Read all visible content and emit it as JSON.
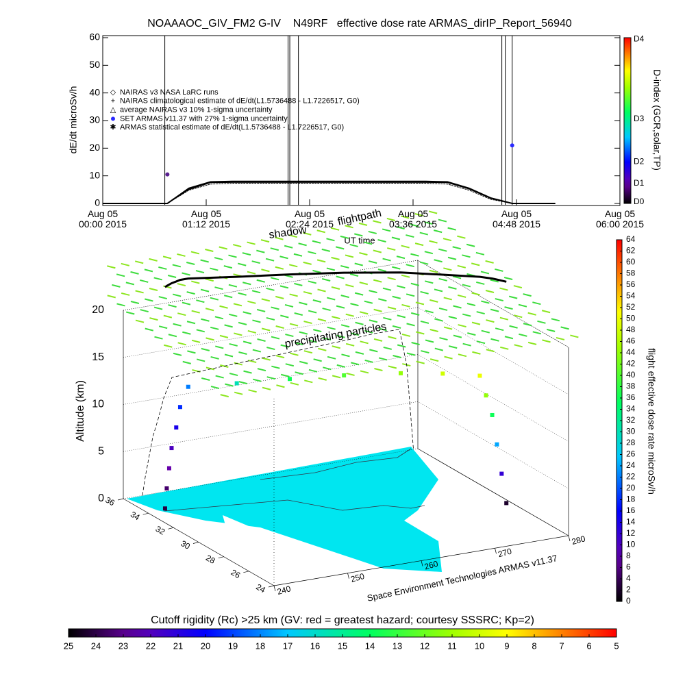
{
  "chart_data": [
    {
      "type": "line",
      "title": "NOAAAOC_GIV_FM2 G-IV    N49RF   effective dose rate ARMAS_dirIP_Report_56940",
      "ylabel": "dE/dt microSv/h",
      "xlabel": "UT time",
      "x": [
        0,
        0.25,
        0.5,
        0.75,
        1,
        1.25,
        1.5,
        1.75,
        2,
        2.25,
        2.5,
        2.75,
        3,
        3.25,
        3.5,
        3.75,
        4,
        4.25,
        4.5,
        4.75,
        5,
        5.25
      ],
      "xlim": [
        0,
        6
      ],
      "xticks": [
        {
          "value": 0,
          "label": "Aug 05\n00:00 2015"
        },
        {
          "value": 1.2,
          "label": "Aug 05\n01:12 2015"
        },
        {
          "value": 2.4,
          "label": "Aug 05\n02:24 2015"
        },
        {
          "value": 3.6,
          "label": "Aug 05\n03:36 2015"
        },
        {
          "value": 4.8,
          "label": "Aug 05\n04:48 2015"
        },
        {
          "value": 6,
          "label": "Aug 05\n06:00 2015"
        }
      ],
      "ylim": [
        0,
        60
      ],
      "yticks": [
        0,
        10,
        20,
        30,
        40,
        50,
        60
      ],
      "series": [
        {
          "name": "NAIRAS v3 NASA LaRC runs",
          "color": "#000000",
          "values": [
            0,
            0,
            0,
            0,
            5,
            7.5,
            7.6,
            7.6,
            7.6,
            7.6,
            7.6,
            7.6,
            7.6,
            7.6,
            7.6,
            7.6,
            7.5,
            5.2,
            1.8,
            0,
            0,
            0
          ]
        },
        {
          "name": "NAIRAS climatological estimate of dE/dt(L1.5736488 - L1.7226517, G0)",
          "color": "#000000",
          "values": [
            0,
            0,
            0,
            0,
            5.5,
            7.8,
            8,
            8,
            8,
            8,
            8,
            8,
            8,
            8,
            8,
            8,
            7.8,
            5.5,
            2,
            0,
            0,
            0
          ]
        },
        {
          "name": "average NAIRAS v3 10% 1-sigma uncertainty",
          "color": "#000000",
          "values": [
            0,
            0,
            0,
            0,
            5.2,
            7.6,
            7.7,
            7.7,
            7.7,
            7.7,
            7.7,
            7.7,
            7.7,
            7.7,
            7.7,
            7.7,
            7.6,
            5.3,
            1.9,
            0,
            0,
            0
          ]
        },
        {
          "name": "SET ARMAS v11.37 with 27% 1-sigma uncertainty",
          "color": "#2a2aff",
          "values": [
            null,
            null,
            null,
            10.5,
            null,
            null,
            null,
            null,
            null,
            null,
            null,
            null,
            null,
            null,
            null,
            null,
            null,
            null,
            null,
            21,
            null,
            null
          ]
        },
        {
          "name": "ARMAS statistical estimate of dE/dt(L1.5736488 - L1.7226517, G0)",
          "color": "#000000",
          "values": [
            0,
            0,
            0,
            0,
            4.8,
            7,
            7.3,
            7.3,
            7.3,
            7.3,
            7.3,
            7.3,
            7.3,
            7.3,
            7.3,
            7.3,
            7,
            4.8,
            1.5,
            0,
            0,
            0
          ]
        }
      ],
      "colorbar": {
        "label": "D-index (GCR,solar,TP)",
        "ticks": [
          "D0",
          "D1",
          "D2",
          "D3",
          "D4"
        ]
      }
    },
    {
      "type": "scatter3d",
      "zlabel": "Altitude (km)",
      "zlim": [
        0,
        20
      ],
      "zticks": [
        0,
        5,
        10,
        15,
        20
      ],
      "latlim": [
        24,
        36
      ],
      "latticks": [
        36,
        34,
        32,
        30,
        28,
        26,
        24
      ],
      "lonlim": [
        240,
        280
      ],
      "lonticks": [
        240,
        250,
        260,
        270,
        280
      ],
      "annotations": [
        "shadow",
        "flightpath",
        "precipitating particles",
        "Space Environment Technologies ARMAS v11.37"
      ],
      "flight": {
        "lat": [
          34.2,
          34.3,
          34.4,
          34.5,
          34.6,
          34.7,
          34.7,
          34.0,
          33.3,
          32.5,
          31.5,
          30.5,
          29.6,
          29.4,
          29.2,
          29.0,
          28.8,
          28.6
        ],
        "lon": [
          242.6,
          243,
          243.5,
          244,
          244.8,
          245.5,
          246.6,
          252,
          258,
          264,
          270,
          274,
          277.5,
          278,
          278.5,
          278.8,
          279.1,
          279.4
        ],
        "alt": [
          0,
          2,
          4,
          6,
          8,
          10,
          12,
          12.2,
          12.4,
          12.6,
          12.8,
          13,
          13,
          11,
          9,
          6,
          3,
          0
        ],
        "dose": [
          3,
          5,
          8,
          10,
          14,
          18,
          22,
          30,
          36,
          40,
          44,
          48,
          50,
          44,
          36,
          24,
          12,
          2
        ]
      },
      "colorbar": {
        "label": "flight effective dose rate microSv/h",
        "lim": [
          0,
          64
        ],
        "ticks": [
          0,
          2,
          4,
          6,
          8,
          10,
          12,
          14,
          16,
          18,
          20,
          22,
          24,
          26,
          28,
          30,
          32,
          34,
          36,
          38,
          40,
          42,
          44,
          46,
          48,
          50,
          52,
          54,
          56,
          58,
          60,
          62,
          64
        ]
      }
    },
    {
      "type": "colorbar",
      "title": "Cutoff rigidity (Rc) >25 km (GV: red = greatest hazard; courtesy SSSRC; Kp=2)",
      "lim": [
        25,
        5
      ],
      "ticks": [
        25,
        24,
        23,
        22,
        21,
        20,
        19,
        18,
        17,
        16,
        15,
        14,
        13,
        12,
        11,
        10,
        9,
        8,
        7,
        6,
        5
      ]
    }
  ]
}
